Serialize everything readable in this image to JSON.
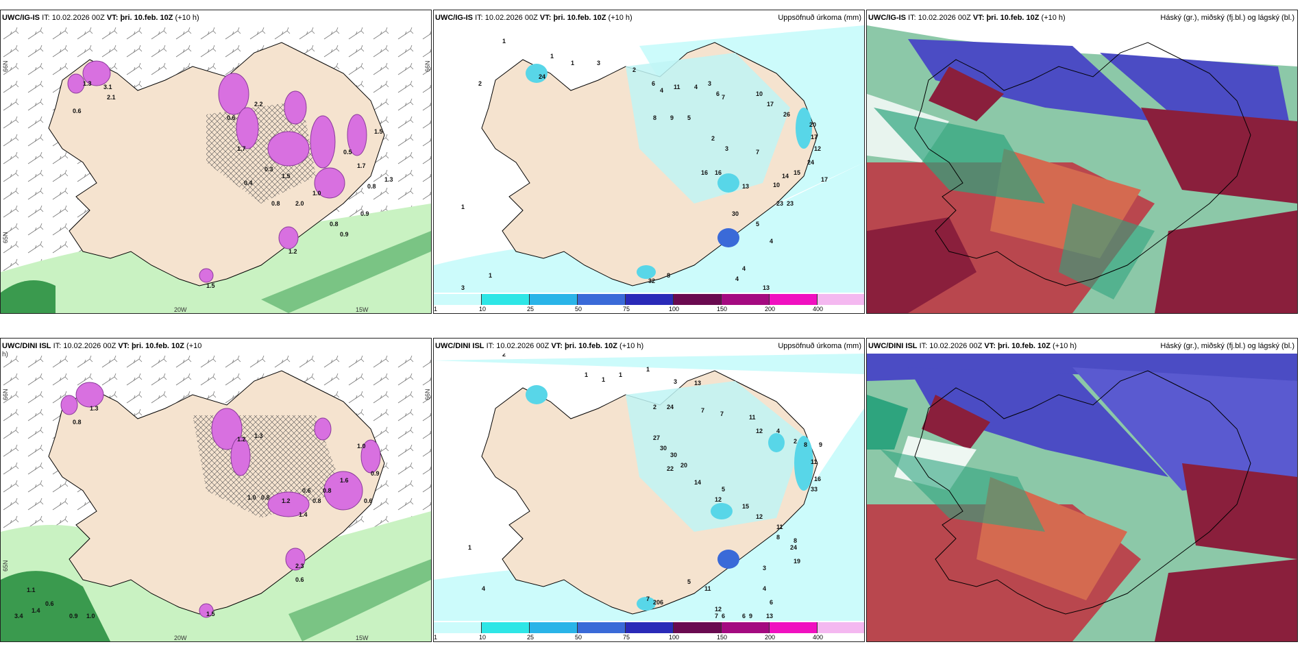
{
  "colors": {
    "land": "#f5e3cf",
    "ocean": "#ffffff",
    "precip": "#ccfbfb",
    "precip_med": "#8af0f5",
    "precip_high": "#3aa0f0",
    "snow_magenta": "#d870e0",
    "wind_green": "#a8e6a8",
    "wind_dark": "#2d8a3c",
    "icing_navy": "#4b4cc4",
    "icing_red": "#b9474e",
    "icing_maroon": "#8a1f3c",
    "icing_teal": "#2ea47e"
  },
  "rows": [
    {
      "wind_panel": {
        "model": "UWC/IG-IS",
        "it_label": "IT:",
        "it": "10.02.2026 00Z",
        "vt_label": "VT:",
        "vt": "þri. 10.feb. 10Z",
        "lead": "(+10 h)",
        "axis": {
          "lon_20w": "20W",
          "lon_15w": "15W",
          "lat_66n_a": "66N",
          "lat_66n_b": "66N",
          "lat_65n": "65N"
        },
        "values": [
          "1.3",
          "3.1",
          "2.1",
          "0.6",
          "0.6",
          "2.2",
          "1.7",
          "0.4",
          "0.3",
          "1.5",
          "0.8",
          "2.0",
          "1.0",
          "0.8",
          "0.5",
          "0.9",
          "1.7",
          "0.9",
          "1.3",
          "0.8",
          "1.5",
          "1.5",
          "1.2"
        ]
      },
      "precip_panel": {
        "model": "UWC/IG-IS",
        "it_label": "IT:",
        "it": "10.02.2026 00Z",
        "vt_label": "VT:",
        "vt": "þri. 10.feb. 10Z",
        "lead": "(+10 h)",
        "title": "Uppsöfnuð úrkoma (mm)",
        "values": [
          "1",
          "1",
          "1",
          "3",
          "2",
          "6",
          "4",
          "11",
          "4",
          "3",
          "6",
          "7",
          "10",
          "17",
          "26",
          "20",
          "17",
          "12",
          "24",
          "17",
          "8",
          "9",
          "5",
          "2",
          "3",
          "16",
          "16",
          "13",
          "10",
          "23",
          "23",
          "14",
          "15",
          "5",
          "4",
          "4",
          "4",
          "13",
          "1",
          "3",
          "2",
          "1",
          "24",
          "32",
          "30",
          "8",
          "7"
        ],
        "legend": [
          "1",
          "10",
          "25",
          "50",
          "75",
          "100",
          "150",
          "200",
          "400"
        ]
      },
      "icing_panel": {
        "model": "UWC/IG-IS",
        "it_label": "IT:",
        "it": "10.02.2026 00Z",
        "vt_label": "VT:",
        "vt": "þri. 10.feb. 10Z",
        "lead": "(+10 h)",
        "title": "Háský (gr.), miðský (fj.bl.) og lágský (bl.)"
      }
    },
    {
      "wind_panel": {
        "model": "UWC/DINI ISL",
        "it_label": "IT:",
        "it": "10.02.2026 00Z",
        "vt_label": "VT:",
        "vt": "þri. 10.feb. 10Z",
        "lead": "(+10",
        "lead_wrap": "h)",
        "axis": {
          "lon_20w": "20W",
          "lon_15w": "15W",
          "lat_66n_a": "66N",
          "lat_66n_b": "66N",
          "lat_65n": "65N"
        },
        "values": [
          "3.4",
          "1.4",
          "1.3",
          "0.8",
          "1.2",
          "1.3",
          "1.0",
          "0.8",
          "1.2",
          "0.6",
          "0.8",
          "1.6",
          "0.6",
          "0.9",
          "1.0",
          "0.8",
          "1.4",
          "1.1",
          "0.9",
          "1.0",
          "0.6",
          "2.3",
          "0.6",
          "1.5"
        ]
      },
      "precip_panel": {
        "model": "UWC/DINI ISL",
        "it_label": "IT:",
        "it": "10.02.2026 00Z",
        "vt_label": "VT:",
        "vt": "þri. 10.feb. 10Z",
        "lead": "(+10 h)",
        "title": "Uppsöfnuð úrkoma (mm)",
        "values": [
          "2",
          "1",
          "1",
          "1",
          "1",
          "3",
          "13",
          "2",
          "24",
          "7",
          "7",
          "11",
          "12",
          "4",
          "2",
          "8",
          "9",
          "11",
          "16",
          "33",
          "27",
          "30",
          "30",
          "22",
          "20",
          "14",
          "12",
          "5",
          "15",
          "12",
          "11",
          "8",
          "8",
          "24",
          "19",
          "3",
          "4",
          "6",
          "12",
          "13",
          "1",
          "4",
          "6",
          "7",
          "20",
          "5",
          "11",
          "7",
          "6",
          "9",
          "6"
        ],
        "legend": [
          "1",
          "10",
          "25",
          "50",
          "75",
          "100",
          "150",
          "200",
          "400"
        ]
      },
      "icing_panel": {
        "model": "UWC/DINI ISL",
        "it_label": "IT:",
        "it": "10.02.2026 00Z",
        "vt_label": "VT:",
        "vt": "þri. 10.feb. 10Z",
        "lead": "(+10 h)",
        "title": "Háský (gr.), miðský (fj.bl.) og lágský (bl.)"
      }
    }
  ]
}
